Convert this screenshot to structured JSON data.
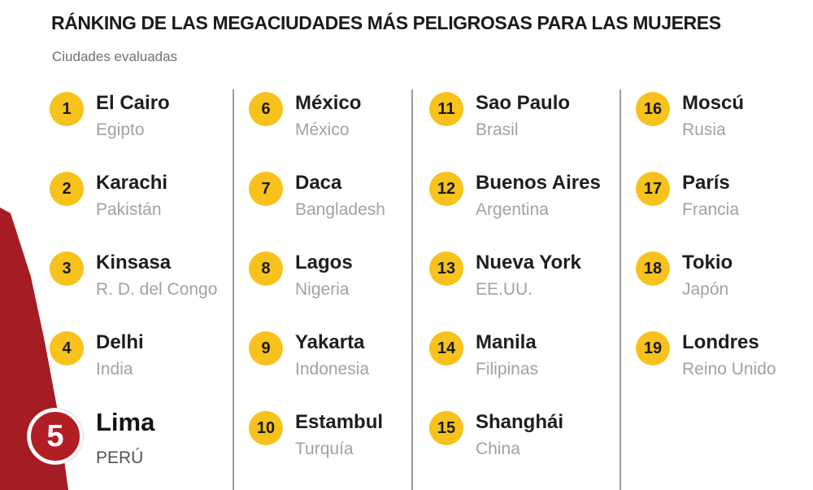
{
  "header": {
    "title": "RÁNKING DE LAS MEGACIUDADES MÁS PELIGROSAS PARA LAS MUJERES",
    "subtitle": "Ciudades evaluadas"
  },
  "colors": {
    "badge": "#f7c21c",
    "featured_badge": "#b11e23",
    "accent_red": "#a51c24",
    "city_text": "#1e1e1e",
    "country_text": "#a2a2a2"
  },
  "columns": [
    [
      {
        "rank": "1",
        "city": "El Cairo",
        "country": "Egipto"
      },
      {
        "rank": "2",
        "city": "Karachi",
        "country": "Pakistán"
      },
      {
        "rank": "3",
        "city": "Kinsasa",
        "country": "R. D. del Congo"
      },
      {
        "rank": "4",
        "city": "Delhi",
        "country": "India"
      },
      {
        "rank": "5",
        "city": "Lima",
        "country": "PERÚ"
      }
    ],
    [
      {
        "rank": "6",
        "city": "México",
        "country": "México"
      },
      {
        "rank": "7",
        "city": "Daca",
        "country": "Bangladesh"
      },
      {
        "rank": "8",
        "city": "Lagos",
        "country": "Nigeria"
      },
      {
        "rank": "9",
        "city": "Yakarta",
        "country": "Indonesia"
      },
      {
        "rank": "10",
        "city": "Estambul",
        "country": "Turquía"
      }
    ],
    [
      {
        "rank": "11",
        "city": "Sao Paulo",
        "country": "Brasil"
      },
      {
        "rank": "12",
        "city": "Buenos Aires",
        "country": "Argentina"
      },
      {
        "rank": "13",
        "city": "Nueva York",
        "country": "EE.UU."
      },
      {
        "rank": "14",
        "city": "Manila",
        "country": "Filipinas"
      },
      {
        "rank": "15",
        "city": "Shanghái",
        "country": "China"
      }
    ],
    [
      {
        "rank": "16",
        "city": "Moscú",
        "country": "Rusia"
      },
      {
        "rank": "17",
        "city": "París",
        "country": "Francia"
      },
      {
        "rank": "18",
        "city": "Tokio",
        "country": "Japón"
      },
      {
        "rank": "19",
        "city": "Londres",
        "country": "Reino Unido"
      }
    ]
  ]
}
